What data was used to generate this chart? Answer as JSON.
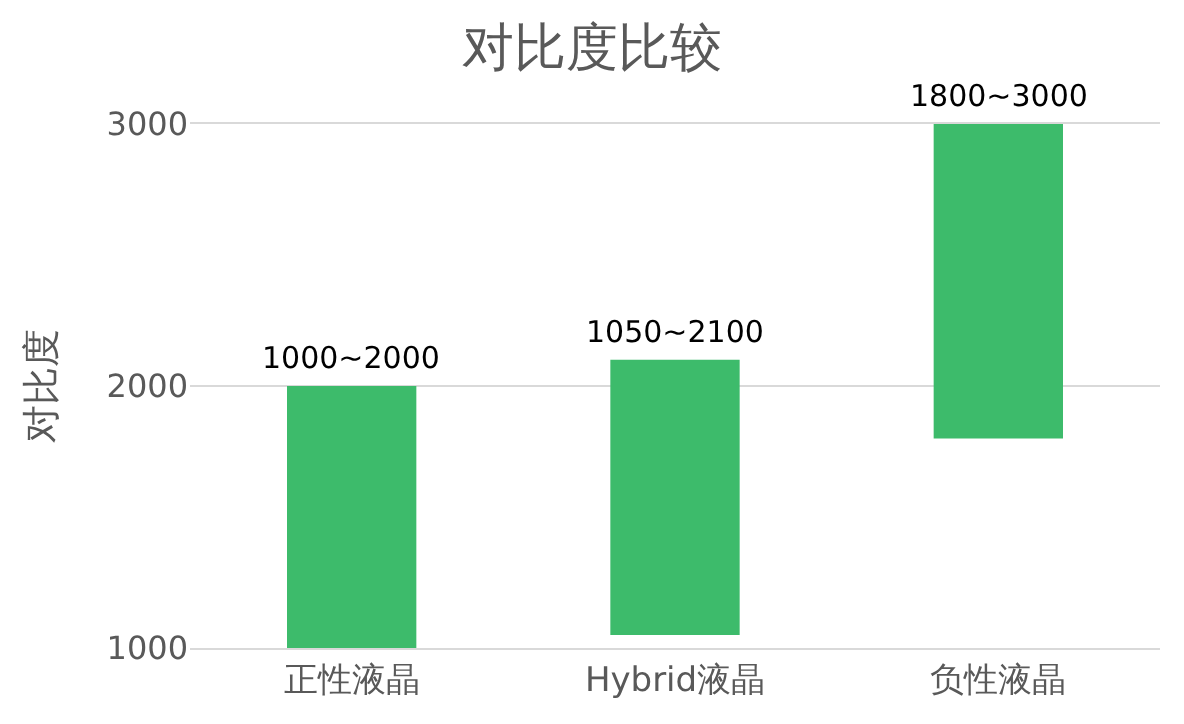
{
  "chart_data": {
    "type": "bar",
    "title": "对比度比较",
    "ylabel": "对比度",
    "categories": [
      "正性液晶",
      "Hybrid液晶",
      "负性液晶"
    ],
    "base": [
      1000,
      1050,
      1800
    ],
    "values": [
      1000,
      1050,
      1200
    ],
    "annotations": [
      {
        "text": "1000~2000",
        "x": "正性液晶",
        "y": 2000
      },
      {
        "text": "1050~2100",
        "x": "Hybrid液晶",
        "y": 2100
      },
      {
        "text": "1800~3000",
        "x": "负性液晶",
        "y": 3000
      }
    ],
    "color": "#3dbb6b",
    "ylim": [
      1000,
      3000
    ],
    "yticks": [
      1000,
      2000,
      3000
    ],
    "grid": "y"
  }
}
